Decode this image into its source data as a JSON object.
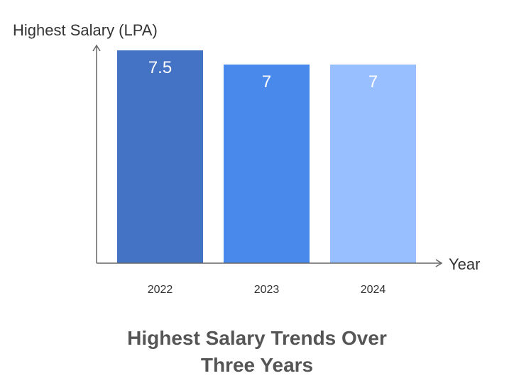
{
  "chart_data": {
    "type": "bar",
    "title": "Highest Salary Trends Over Three Years",
    "title_lines": [
      "Highest Salary Trends Over",
      "Three Years"
    ],
    "xlabel": "Year",
    "ylabel": "Highest Salary (LPA)",
    "categories": [
      "2022",
      "2023",
      "2024"
    ],
    "values": [
      7.5,
      7,
      7
    ],
    "data_labels": [
      "7.5",
      "7",
      "7"
    ],
    "bar_colors": [
      "#4472C4",
      "#4A89EC",
      "#98BFFF"
    ],
    "ylim": [
      0,
      7.5
    ],
    "grid": false,
    "legend": "none"
  }
}
